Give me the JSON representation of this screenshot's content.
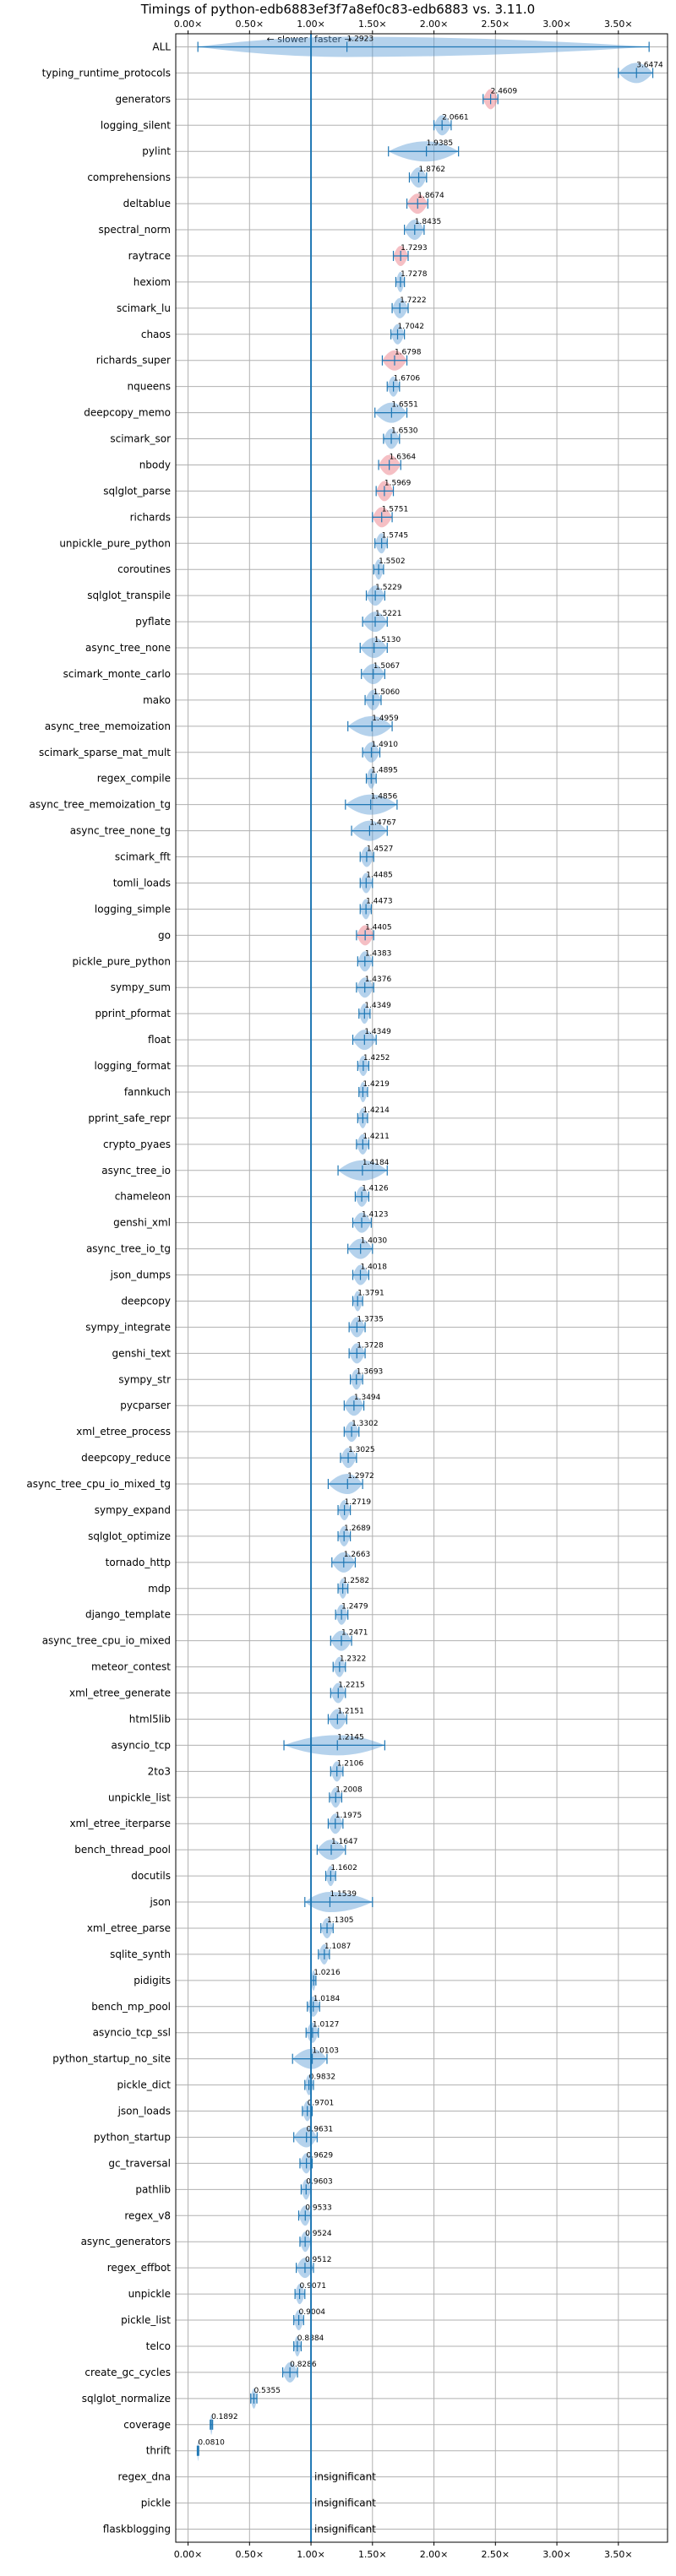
{
  "chart_data": {
    "type": "violin",
    "title": "Timings of python-edb6883ef3f7a8ef0c83-edb6883 vs. 3.11.0",
    "xlabel": "",
    "ylabel": "",
    "direction_labels": {
      "slower": "← slower",
      "faster": "faster →"
    },
    "xlim": [
      -0.1,
      3.9
    ],
    "x_ticks": [
      0.0,
      0.5,
      1.0,
      1.5,
      2.0,
      2.5,
      3.0,
      3.5
    ],
    "x_tick_labels": [
      "0.00×",
      "0.50×",
      "1.00×",
      "1.50×",
      "2.00×",
      "2.50×",
      "3.00×",
      "3.50×"
    ],
    "reference_line": 1.0,
    "grid": true,
    "insignificant_label": "insignificant",
    "benchmarks": [
      {
        "name": "ALL",
        "value": 1.2923,
        "lo": 0.08,
        "hi": 3.75,
        "label": "1.2923"
      },
      {
        "name": "typing_runtime_protocols",
        "value": 3.6474,
        "lo": 3.5,
        "hi": 3.78,
        "label": "3.6474"
      },
      {
        "name": "generators",
        "value": 2.4609,
        "lo": 2.4,
        "hi": 2.52,
        "label": "2.4609",
        "color": "red"
      },
      {
        "name": "logging_silent",
        "value": 2.0661,
        "lo": 2.0,
        "hi": 2.14,
        "label": "2.0661"
      },
      {
        "name": "pylint",
        "value": 1.9385,
        "lo": 1.63,
        "hi": 2.2,
        "label": "1.9385"
      },
      {
        "name": "comprehensions",
        "value": 1.8762,
        "lo": 1.8,
        "hi": 1.94,
        "label": "1.8762"
      },
      {
        "name": "deltablue",
        "value": 1.8674,
        "lo": 1.78,
        "hi": 1.95,
        "label": "1.8674",
        "color": "red"
      },
      {
        "name": "spectral_norm",
        "value": 1.8435,
        "lo": 1.76,
        "hi": 1.92,
        "label": "1.8435"
      },
      {
        "name": "raytrace",
        "value": 1.7293,
        "lo": 1.67,
        "hi": 1.79,
        "label": "1.7293",
        "color": "red"
      },
      {
        "name": "hexiom",
        "value": 1.7278,
        "lo": 1.69,
        "hi": 1.76,
        "label": "1.7278"
      },
      {
        "name": "scimark_lu",
        "value": 1.7222,
        "lo": 1.66,
        "hi": 1.79,
        "label": "1.7222"
      },
      {
        "name": "chaos",
        "value": 1.7042,
        "lo": 1.65,
        "hi": 1.76,
        "label": "1.7042"
      },
      {
        "name": "richards_super",
        "value": 1.6798,
        "lo": 1.58,
        "hi": 1.78,
        "label": "1.6798",
        "color": "red"
      },
      {
        "name": "nqueens",
        "value": 1.6706,
        "lo": 1.62,
        "hi": 1.72,
        "label": "1.6706"
      },
      {
        "name": "deepcopy_memo",
        "value": 1.6551,
        "lo": 1.52,
        "hi": 1.78,
        "label": "1.6551"
      },
      {
        "name": "scimark_sor",
        "value": 1.653,
        "lo": 1.59,
        "hi": 1.72,
        "label": "1.6530"
      },
      {
        "name": "nbody",
        "value": 1.6364,
        "lo": 1.55,
        "hi": 1.73,
        "label": "1.6364",
        "color": "red"
      },
      {
        "name": "sqlglot_parse",
        "value": 1.5969,
        "lo": 1.53,
        "hi": 1.67,
        "label": "1.5969",
        "color": "red"
      },
      {
        "name": "richards",
        "value": 1.5751,
        "lo": 1.5,
        "hi": 1.66,
        "label": "1.5751",
        "color": "red"
      },
      {
        "name": "unpickle_pure_python",
        "value": 1.5745,
        "lo": 1.52,
        "hi": 1.62,
        "label": "1.5745"
      },
      {
        "name": "coroutines",
        "value": 1.5502,
        "lo": 1.51,
        "hi": 1.59,
        "label": "1.5502"
      },
      {
        "name": "sqlglot_transpile",
        "value": 1.5229,
        "lo": 1.45,
        "hi": 1.6,
        "label": "1.5229"
      },
      {
        "name": "pyflate",
        "value": 1.5221,
        "lo": 1.42,
        "hi": 1.62,
        "label": "1.5221"
      },
      {
        "name": "async_tree_none",
        "value": 1.513,
        "lo": 1.4,
        "hi": 1.62,
        "label": "1.5130"
      },
      {
        "name": "scimark_monte_carlo",
        "value": 1.5067,
        "lo": 1.41,
        "hi": 1.6,
        "label": "1.5067"
      },
      {
        "name": "mako",
        "value": 1.506,
        "lo": 1.44,
        "hi": 1.57,
        "label": "1.5060"
      },
      {
        "name": "async_tree_memoization",
        "value": 1.4959,
        "lo": 1.3,
        "hi": 1.66,
        "label": "1.4959"
      },
      {
        "name": "scimark_sparse_mat_mult",
        "value": 1.491,
        "lo": 1.42,
        "hi": 1.56,
        "label": "1.4910"
      },
      {
        "name": "regex_compile",
        "value": 1.4895,
        "lo": 1.45,
        "hi": 1.53,
        "label": "1.4895"
      },
      {
        "name": "async_tree_memoization_tg",
        "value": 1.4856,
        "lo": 1.28,
        "hi": 1.7,
        "label": "1.4856"
      },
      {
        "name": "async_tree_none_tg",
        "value": 1.4767,
        "lo": 1.33,
        "hi": 1.62,
        "label": "1.4767"
      },
      {
        "name": "scimark_fft",
        "value": 1.4527,
        "lo": 1.4,
        "hi": 1.51,
        "label": "1.4527"
      },
      {
        "name": "tomli_loads",
        "value": 1.4485,
        "lo": 1.4,
        "hi": 1.5,
        "label": "1.4485"
      },
      {
        "name": "logging_simple",
        "value": 1.4473,
        "lo": 1.4,
        "hi": 1.49,
        "label": "1.4473"
      },
      {
        "name": "go",
        "value": 1.4405,
        "lo": 1.37,
        "hi": 1.51,
        "label": "1.4405",
        "color": "red"
      },
      {
        "name": "pickle_pure_python",
        "value": 1.4383,
        "lo": 1.38,
        "hi": 1.5,
        "label": "1.4383"
      },
      {
        "name": "sympy_sum",
        "value": 1.4376,
        "lo": 1.37,
        "hi": 1.51,
        "label": "1.4376"
      },
      {
        "name": "pprint_pformat",
        "value": 1.4349,
        "lo": 1.39,
        "hi": 1.48,
        "label": "1.4349"
      },
      {
        "name": "float",
        "value": 1.4349,
        "lo": 1.34,
        "hi": 1.53,
        "label": "1.4349"
      },
      {
        "name": "logging_format",
        "value": 1.4252,
        "lo": 1.38,
        "hi": 1.47,
        "label": "1.4252"
      },
      {
        "name": "fannkuch",
        "value": 1.4219,
        "lo": 1.39,
        "hi": 1.46,
        "label": "1.4219"
      },
      {
        "name": "pprint_safe_repr",
        "value": 1.4214,
        "lo": 1.38,
        "hi": 1.46,
        "label": "1.4214"
      },
      {
        "name": "crypto_pyaes",
        "value": 1.4211,
        "lo": 1.37,
        "hi": 1.47,
        "label": "1.4211"
      },
      {
        "name": "async_tree_io",
        "value": 1.4184,
        "lo": 1.22,
        "hi": 1.62,
        "label": "1.4184"
      },
      {
        "name": "chameleon",
        "value": 1.4126,
        "lo": 1.36,
        "hi": 1.47,
        "label": "1.4126"
      },
      {
        "name": "genshi_xml",
        "value": 1.4123,
        "lo": 1.34,
        "hi": 1.49,
        "label": "1.4123"
      },
      {
        "name": "async_tree_io_tg",
        "value": 1.403,
        "lo": 1.3,
        "hi": 1.5,
        "label": "1.4030"
      },
      {
        "name": "json_dumps",
        "value": 1.4018,
        "lo": 1.34,
        "hi": 1.47,
        "label": "1.4018"
      },
      {
        "name": "deepcopy",
        "value": 1.3791,
        "lo": 1.34,
        "hi": 1.42,
        "label": "1.3791"
      },
      {
        "name": "sympy_integrate",
        "value": 1.3735,
        "lo": 1.31,
        "hi": 1.44,
        "label": "1.3735"
      },
      {
        "name": "genshi_text",
        "value": 1.3728,
        "lo": 1.31,
        "hi": 1.44,
        "label": "1.3728"
      },
      {
        "name": "sympy_str",
        "value": 1.3693,
        "lo": 1.32,
        "hi": 1.42,
        "label": "1.3693"
      },
      {
        "name": "pycparser",
        "value": 1.3494,
        "lo": 1.27,
        "hi": 1.43,
        "label": "1.3494"
      },
      {
        "name": "xml_etree_process",
        "value": 1.3302,
        "lo": 1.27,
        "hi": 1.39,
        "label": "1.3302"
      },
      {
        "name": "deepcopy_reduce",
        "value": 1.3025,
        "lo": 1.24,
        "hi": 1.37,
        "label": "1.3025"
      },
      {
        "name": "async_tree_cpu_io_mixed_tg",
        "value": 1.2972,
        "lo": 1.14,
        "hi": 1.42,
        "label": "1.2972"
      },
      {
        "name": "sympy_expand",
        "value": 1.2719,
        "lo": 1.22,
        "hi": 1.32,
        "label": "1.2719"
      },
      {
        "name": "sqlglot_optimize",
        "value": 1.2689,
        "lo": 1.22,
        "hi": 1.32,
        "label": "1.2689"
      },
      {
        "name": "tornado_http",
        "value": 1.2663,
        "lo": 1.17,
        "hi": 1.36,
        "label": "1.2663"
      },
      {
        "name": "mdp",
        "value": 1.2582,
        "lo": 1.22,
        "hi": 1.3,
        "label": "1.2582"
      },
      {
        "name": "django_template",
        "value": 1.2479,
        "lo": 1.2,
        "hi": 1.3,
        "label": "1.2479"
      },
      {
        "name": "async_tree_cpu_io_mixed",
        "value": 1.2471,
        "lo": 1.16,
        "hi": 1.33,
        "label": "1.2471"
      },
      {
        "name": "meteor_contest",
        "value": 1.2322,
        "lo": 1.18,
        "hi": 1.28,
        "label": "1.2322"
      },
      {
        "name": "xml_etree_generate",
        "value": 1.2215,
        "lo": 1.16,
        "hi": 1.28,
        "label": "1.2215"
      },
      {
        "name": "html5lib",
        "value": 1.2151,
        "lo": 1.14,
        "hi": 1.29,
        "label": "1.2151"
      },
      {
        "name": "asyncio_tcp",
        "value": 1.2145,
        "lo": 0.78,
        "hi": 1.6,
        "label": "1.2145"
      },
      {
        "name": "2to3",
        "value": 1.2106,
        "lo": 1.16,
        "hi": 1.26,
        "label": "1.2106"
      },
      {
        "name": "unpickle_list",
        "value": 1.2008,
        "lo": 1.15,
        "hi": 1.25,
        "label": "1.2008"
      },
      {
        "name": "xml_etree_iterparse",
        "value": 1.1975,
        "lo": 1.14,
        "hi": 1.26,
        "label": "1.1975"
      },
      {
        "name": "bench_thread_pool",
        "value": 1.1647,
        "lo": 1.05,
        "hi": 1.28,
        "label": "1.1647"
      },
      {
        "name": "docutils",
        "value": 1.1602,
        "lo": 1.12,
        "hi": 1.2,
        "label": "1.1602"
      },
      {
        "name": "json",
        "value": 1.1539,
        "lo": 0.95,
        "hi": 1.5,
        "label": "1.1539"
      },
      {
        "name": "xml_etree_parse",
        "value": 1.1305,
        "lo": 1.08,
        "hi": 1.18,
        "label": "1.1305"
      },
      {
        "name": "sqlite_synth",
        "value": 1.1087,
        "lo": 1.06,
        "hi": 1.15,
        "label": "1.1087"
      },
      {
        "name": "pidigits",
        "value": 1.0216,
        "lo": 1.0,
        "hi": 1.04,
        "label": "1.0216"
      },
      {
        "name": "bench_mp_pool",
        "value": 1.0184,
        "lo": 0.97,
        "hi": 1.07,
        "label": "1.0184"
      },
      {
        "name": "asyncio_tcp_ssl",
        "value": 1.0127,
        "lo": 0.96,
        "hi": 1.06,
        "label": "1.0127"
      },
      {
        "name": "python_startup_no_site",
        "value": 1.0103,
        "lo": 0.85,
        "hi": 1.13,
        "label": "1.0103"
      },
      {
        "name": "pickle_dict",
        "value": 0.9832,
        "lo": 0.95,
        "hi": 1.02,
        "label": "0.9832"
      },
      {
        "name": "json_loads",
        "value": 0.9701,
        "lo": 0.93,
        "hi": 1.01,
        "label": "0.9701"
      },
      {
        "name": "python_startup",
        "value": 0.9631,
        "lo": 0.86,
        "hi": 1.05,
        "label": "0.9631"
      },
      {
        "name": "gc_traversal",
        "value": 0.9629,
        "lo": 0.91,
        "hi": 1.01,
        "label": "0.9629"
      },
      {
        "name": "pathlib",
        "value": 0.9603,
        "lo": 0.92,
        "hi": 1.0,
        "label": "0.9603"
      },
      {
        "name": "regex_v8",
        "value": 0.9533,
        "lo": 0.9,
        "hi": 1.0,
        "label": "0.9533"
      },
      {
        "name": "async_generators",
        "value": 0.9524,
        "lo": 0.91,
        "hi": 1.0,
        "label": "0.9524"
      },
      {
        "name": "regex_effbot",
        "value": 0.9512,
        "lo": 0.88,
        "hi": 1.02,
        "label": "0.9512"
      },
      {
        "name": "unpickle",
        "value": 0.9071,
        "lo": 0.87,
        "hi": 0.95,
        "label": "0.9071"
      },
      {
        "name": "pickle_list",
        "value": 0.9004,
        "lo": 0.86,
        "hi": 0.94,
        "label": "0.9004"
      },
      {
        "name": "telco",
        "value": 0.8884,
        "lo": 0.86,
        "hi": 0.92,
        "label": "0.8884"
      },
      {
        "name": "create_gc_cycles",
        "value": 0.8286,
        "lo": 0.77,
        "hi": 0.89,
        "label": "0.8286"
      },
      {
        "name": "sqlglot_normalize",
        "value": 0.5355,
        "lo": 0.51,
        "hi": 0.56,
        "label": "0.5355"
      },
      {
        "name": "coverage",
        "value": 0.1892,
        "lo": 0.18,
        "hi": 0.2,
        "label": "0.1892"
      },
      {
        "name": "thrift",
        "value": 0.081,
        "lo": 0.075,
        "hi": 0.087,
        "label": "0.0810"
      },
      {
        "name": "regex_dna",
        "insignificant": true
      },
      {
        "name": "pickle",
        "insignificant": true
      },
      {
        "name": "flaskblogging",
        "insignificant": true
      }
    ],
    "colors": {
      "body": "#5b9bd5",
      "line": "#1f77b4",
      "red": "#e8727c",
      "ref": "#1f77b4"
    }
  }
}
